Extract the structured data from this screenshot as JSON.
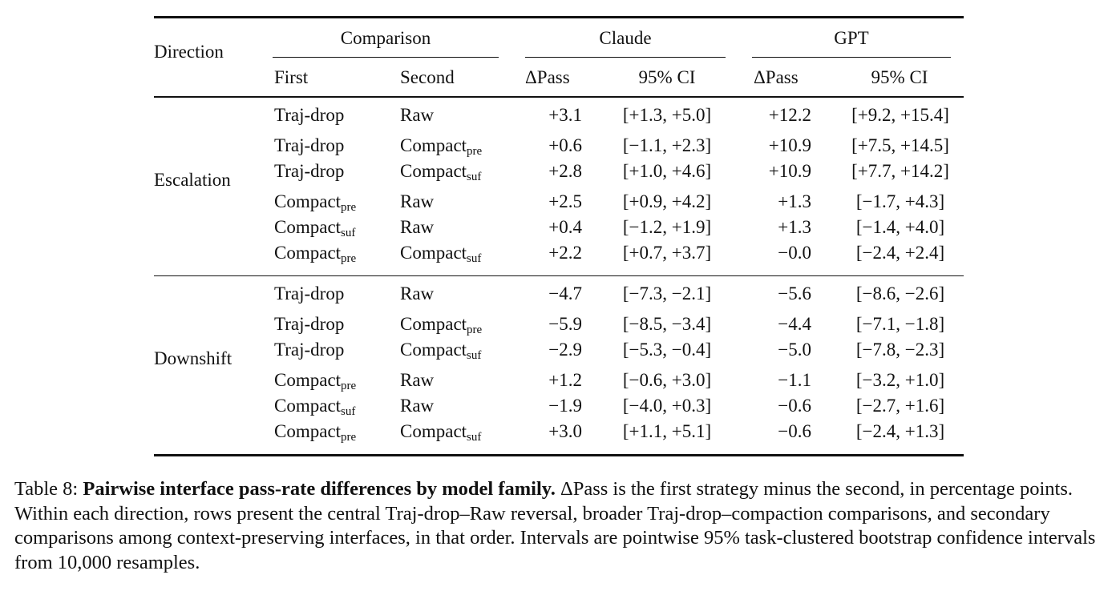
{
  "table": {
    "headers": {
      "direction": "Direction",
      "comparison": "Comparison",
      "first": "First",
      "second": "Second",
      "claude": "Claude",
      "gpt": "GPT",
      "delta_pass": "ΔPass",
      "ci": "95% CI"
    },
    "groups": [
      {
        "direction": "Escalation",
        "rows": [
          {
            "first": "Traj-drop",
            "first_sub": "",
            "second": "Raw",
            "second_sub": "",
            "claude_delta": "+3.1",
            "claude_ci": "[+1.3, +5.0]",
            "gpt_delta": "+12.2",
            "gpt_ci": "[+9.2, +15.4]"
          },
          {
            "first": "Traj-drop",
            "first_sub": "",
            "second": "Compact",
            "second_sub": "pre",
            "claude_delta": "+0.6",
            "claude_ci": "[−1.1, +2.3]",
            "gpt_delta": "+10.9",
            "gpt_ci": "[+7.5, +14.5]"
          },
          {
            "first": "Traj-drop",
            "first_sub": "",
            "second": "Compact",
            "second_sub": "suf",
            "claude_delta": "+2.8",
            "claude_ci": "[+1.0, +4.6]",
            "gpt_delta": "+10.9",
            "gpt_ci": "[+7.7, +14.2]"
          },
          {
            "first": "Compact",
            "first_sub": "pre",
            "second": "Raw",
            "second_sub": "",
            "claude_delta": "+2.5",
            "claude_ci": "[+0.9, +4.2]",
            "gpt_delta": "+1.3",
            "gpt_ci": "[−1.7, +4.3]"
          },
          {
            "first": "Compact",
            "first_sub": "suf",
            "second": "Raw",
            "second_sub": "",
            "claude_delta": "+0.4",
            "claude_ci": "[−1.2, +1.9]",
            "gpt_delta": "+1.3",
            "gpt_ci": "[−1.4, +4.0]"
          },
          {
            "first": "Compact",
            "first_sub": "pre",
            "second": "Compact",
            "second_sub": "suf",
            "claude_delta": "+2.2",
            "claude_ci": "[+0.7, +3.7]",
            "gpt_delta": "−0.0",
            "gpt_ci": "[−2.4, +2.4]"
          }
        ]
      },
      {
        "direction": "Downshift",
        "rows": [
          {
            "first": "Traj-drop",
            "first_sub": "",
            "second": "Raw",
            "second_sub": "",
            "claude_delta": "−4.7",
            "claude_ci": "[−7.3, −2.1]",
            "gpt_delta": "−5.6",
            "gpt_ci": "[−8.6, −2.6]"
          },
          {
            "first": "Traj-drop",
            "first_sub": "",
            "second": "Compact",
            "second_sub": "pre",
            "claude_delta": "−5.9",
            "claude_ci": "[−8.5, −3.4]",
            "gpt_delta": "−4.4",
            "gpt_ci": "[−7.1, −1.8]"
          },
          {
            "first": "Traj-drop",
            "first_sub": "",
            "second": "Compact",
            "second_sub": "suf",
            "claude_delta": "−2.9",
            "claude_ci": "[−5.3, −0.4]",
            "gpt_delta": "−5.0",
            "gpt_ci": "[−7.8, −2.3]"
          },
          {
            "first": "Compact",
            "first_sub": "pre",
            "second": "Raw",
            "second_sub": "",
            "claude_delta": "+1.2",
            "claude_ci": "[−0.6, +3.0]",
            "gpt_delta": "−1.1",
            "gpt_ci": "[−3.2, +1.0]"
          },
          {
            "first": "Compact",
            "first_sub": "suf",
            "second": "Raw",
            "second_sub": "",
            "claude_delta": "−1.9",
            "claude_ci": "[−4.0, +0.3]",
            "gpt_delta": "−0.6",
            "gpt_ci": "[−2.7, +1.6]"
          },
          {
            "first": "Compact",
            "first_sub": "pre",
            "second": "Compact",
            "second_sub": "suf",
            "claude_delta": "+3.0",
            "claude_ci": "[+1.1, +5.1]",
            "gpt_delta": "−0.6",
            "gpt_ci": "[−2.4, +1.3]"
          }
        ]
      }
    ]
  },
  "caption": {
    "label": "Table 8: ",
    "title": "Pairwise interface pass-rate differences by model family.",
    "body": " ΔPass is the first strategy minus the second, in percentage points. Within each direction, rows present the central Traj-drop–Raw reversal, broader Traj-drop–compaction comparisons, and secondary comparisons among context-preserving interfaces, in that order. Intervals are pointwise 95% task-clustered bootstrap confidence intervals from 10,000 resamples."
  }
}
